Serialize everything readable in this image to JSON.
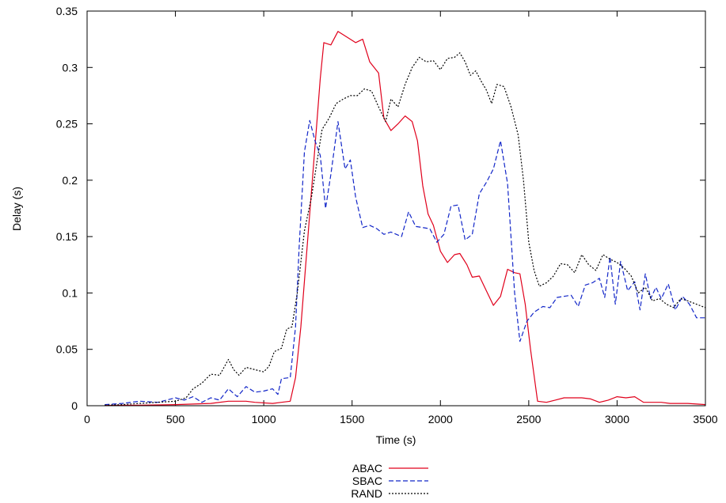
{
  "chart_data": {
    "type": "line",
    "title": "",
    "xlabel": "Time (s)",
    "ylabel": "Delay (s)",
    "xlim": [
      0,
      3500
    ],
    "ylim": [
      0,
      0.35
    ],
    "x_ticks": [
      0,
      500,
      1000,
      1500,
      2000,
      2500,
      3000,
      3500
    ],
    "x_tick_labels": [
      "0",
      "500",
      "1000",
      "1500",
      "2000",
      "2500",
      "3000",
      "3500"
    ],
    "y_ticks": [
      0,
      0.05,
      0.1,
      0.15,
      0.2,
      0.25,
      0.3,
      0.35
    ],
    "y_tick_labels": [
      "0",
      "0.05",
      "0.1",
      "0.15",
      "0.2",
      "0.25",
      "0.3",
      "0.35"
    ],
    "grid": false,
    "legend_position": "bottom-center",
    "series": [
      {
        "name": "ABAC",
        "color": "#e0001b",
        "dash": "solid",
        "points": [
          [
            100,
            0.0003
          ],
          [
            300,
            0.0005
          ],
          [
            500,
            0.001
          ],
          [
            700,
            0.002
          ],
          [
            800,
            0.004
          ],
          [
            900,
            0.004
          ],
          [
            950,
            0.003
          ],
          [
            1050,
            0.002
          ],
          [
            1100,
            0.003
          ],
          [
            1150,
            0.004
          ],
          [
            1180,
            0.025
          ],
          [
            1210,
            0.07
          ],
          [
            1240,
            0.13
          ],
          [
            1270,
            0.19
          ],
          [
            1300,
            0.25
          ],
          [
            1320,
            0.29
          ],
          [
            1340,
            0.322
          ],
          [
            1380,
            0.32
          ],
          [
            1420,
            0.332
          ],
          [
            1470,
            0.327
          ],
          [
            1520,
            0.322
          ],
          [
            1560,
            0.325
          ],
          [
            1600,
            0.305
          ],
          [
            1650,
            0.295
          ],
          [
            1680,
            0.255
          ],
          [
            1720,
            0.244
          ],
          [
            1760,
            0.25
          ],
          [
            1800,
            0.257
          ],
          [
            1840,
            0.252
          ],
          [
            1870,
            0.235
          ],
          [
            1900,
            0.195
          ],
          [
            1930,
            0.17
          ],
          [
            1960,
            0.16
          ],
          [
            2000,
            0.137
          ],
          [
            2040,
            0.127
          ],
          [
            2080,
            0.134
          ],
          [
            2110,
            0.135
          ],
          [
            2150,
            0.125
          ],
          [
            2180,
            0.114
          ],
          [
            2220,
            0.115
          ],
          [
            2260,
            0.102
          ],
          [
            2300,
            0.089
          ],
          [
            2340,
            0.097
          ],
          [
            2380,
            0.121
          ],
          [
            2420,
            0.118
          ],
          [
            2450,
            0.117
          ],
          [
            2480,
            0.09
          ],
          [
            2510,
            0.05
          ],
          [
            2550,
            0.004
          ],
          [
            2600,
            0.003
          ],
          [
            2650,
            0.005
          ],
          [
            2700,
            0.007
          ],
          [
            2800,
            0.007
          ],
          [
            2850,
            0.006
          ],
          [
            2900,
            0.003
          ],
          [
            2950,
            0.005
          ],
          [
            3000,
            0.008
          ],
          [
            3050,
            0.007
          ],
          [
            3100,
            0.008
          ],
          [
            3150,
            0.003
          ],
          [
            3250,
            0.003
          ],
          [
            3300,
            0.002
          ],
          [
            3400,
            0.002
          ],
          [
            3500,
            0.001
          ]
        ]
      },
      {
        "name": "SBAC",
        "color": "#1226c8",
        "dash": "dashed",
        "points": [
          [
            100,
            0.001
          ],
          [
            200,
            0.002
          ],
          [
            300,
            0.004
          ],
          [
            400,
            0.003
          ],
          [
            500,
            0.007
          ],
          [
            550,
            0.005
          ],
          [
            600,
            0.008
          ],
          [
            650,
            0.003
          ],
          [
            700,
            0.007
          ],
          [
            750,
            0.005
          ],
          [
            800,
            0.015
          ],
          [
            850,
            0.008
          ],
          [
            900,
            0.017
          ],
          [
            950,
            0.012
          ],
          [
            1000,
            0.013
          ],
          [
            1050,
            0.015
          ],
          [
            1080,
            0.01
          ],
          [
            1100,
            0.024
          ],
          [
            1150,
            0.025
          ],
          [
            1180,
            0.07
          ],
          [
            1200,
            0.14
          ],
          [
            1230,
            0.225
          ],
          [
            1260,
            0.253
          ],
          [
            1290,
            0.235
          ],
          [
            1320,
            0.222
          ],
          [
            1350,
            0.175
          ],
          [
            1380,
            0.205
          ],
          [
            1420,
            0.252
          ],
          [
            1460,
            0.21
          ],
          [
            1490,
            0.218
          ],
          [
            1520,
            0.185
          ],
          [
            1560,
            0.158
          ],
          [
            1600,
            0.16
          ],
          [
            1640,
            0.157
          ],
          [
            1680,
            0.152
          ],
          [
            1720,
            0.154
          ],
          [
            1780,
            0.15
          ],
          [
            1820,
            0.172
          ],
          [
            1860,
            0.159
          ],
          [
            1900,
            0.158
          ],
          [
            1940,
            0.157
          ],
          [
            1980,
            0.145
          ],
          [
            2020,
            0.152
          ],
          [
            2060,
            0.177
          ],
          [
            2100,
            0.178
          ],
          [
            2140,
            0.147
          ],
          [
            2180,
            0.152
          ],
          [
            2220,
            0.188
          ],
          [
            2260,
            0.198
          ],
          [
            2300,
            0.21
          ],
          [
            2340,
            0.235
          ],
          [
            2380,
            0.197
          ],
          [
            2420,
            0.1
          ],
          [
            2450,
            0.057
          ],
          [
            2490,
            0.075
          ],
          [
            2530,
            0.083
          ],
          [
            2580,
            0.088
          ],
          [
            2620,
            0.087
          ],
          [
            2660,
            0.096
          ],
          [
            2700,
            0.097
          ],
          [
            2740,
            0.098
          ],
          [
            2780,
            0.088
          ],
          [
            2820,
            0.107
          ],
          [
            2860,
            0.109
          ],
          [
            2900,
            0.113
          ],
          [
            2930,
            0.096
          ],
          [
            2960,
            0.132
          ],
          [
            2990,
            0.09
          ],
          [
            3020,
            0.128
          ],
          [
            3060,
            0.102
          ],
          [
            3100,
            0.11
          ],
          [
            3130,
            0.085
          ],
          [
            3160,
            0.117
          ],
          [
            3190,
            0.095
          ],
          [
            3220,
            0.105
          ],
          [
            3250,
            0.095
          ],
          [
            3290,
            0.108
          ],
          [
            3330,
            0.085
          ],
          [
            3370,
            0.097
          ],
          [
            3410,
            0.09
          ],
          [
            3450,
            0.078
          ],
          [
            3500,
            0.078
          ]
        ]
      },
      {
        "name": "RAND",
        "color": "#000000",
        "dash": "dotted",
        "points": [
          [
            100,
            0.0005
          ],
          [
            200,
            0.001
          ],
          [
            300,
            0.002
          ],
          [
            400,
            0.003
          ],
          [
            500,
            0.004
          ],
          [
            560,
            0.007
          ],
          [
            600,
            0.015
          ],
          [
            650,
            0.02
          ],
          [
            700,
            0.028
          ],
          [
            750,
            0.027
          ],
          [
            800,
            0.041
          ],
          [
            830,
            0.032
          ],
          [
            860,
            0.027
          ],
          [
            900,
            0.034
          ],
          [
            950,
            0.032
          ],
          [
            1000,
            0.03
          ],
          [
            1030,
            0.035
          ],
          [
            1060,
            0.048
          ],
          [
            1100,
            0.051
          ],
          [
            1130,
            0.068
          ],
          [
            1160,
            0.07
          ],
          [
            1190,
            0.1
          ],
          [
            1230,
            0.155
          ],
          [
            1270,
            0.185
          ],
          [
            1300,
            0.215
          ],
          [
            1330,
            0.245
          ],
          [
            1370,
            0.255
          ],
          [
            1410,
            0.268
          ],
          [
            1450,
            0.272
          ],
          [
            1490,
            0.275
          ],
          [
            1530,
            0.275
          ],
          [
            1570,
            0.281
          ],
          [
            1610,
            0.279
          ],
          [
            1650,
            0.265
          ],
          [
            1690,
            0.252
          ],
          [
            1720,
            0.272
          ],
          [
            1760,
            0.265
          ],
          [
            1800,
            0.285
          ],
          [
            1840,
            0.3
          ],
          [
            1880,
            0.309
          ],
          [
            1920,
            0.305
          ],
          [
            1960,
            0.306
          ],
          [
            2000,
            0.298
          ],
          [
            2040,
            0.308
          ],
          [
            2080,
            0.309
          ],
          [
            2110,
            0.313
          ],
          [
            2140,
            0.305
          ],
          [
            2170,
            0.293
          ],
          [
            2200,
            0.297
          ],
          [
            2230,
            0.288
          ],
          [
            2260,
            0.28
          ],
          [
            2290,
            0.268
          ],
          [
            2320,
            0.285
          ],
          [
            2360,
            0.283
          ],
          [
            2400,
            0.265
          ],
          [
            2440,
            0.24
          ],
          [
            2470,
            0.2
          ],
          [
            2500,
            0.145
          ],
          [
            2530,
            0.12
          ],
          [
            2560,
            0.106
          ],
          [
            2600,
            0.109
          ],
          [
            2640,
            0.115
          ],
          [
            2680,
            0.126
          ],
          [
            2720,
            0.125
          ],
          [
            2760,
            0.118
          ],
          [
            2800,
            0.134
          ],
          [
            2840,
            0.125
          ],
          [
            2880,
            0.12
          ],
          [
            2920,
            0.134
          ],
          [
            2960,
            0.13
          ],
          [
            3000,
            0.127
          ],
          [
            3040,
            0.122
          ],
          [
            3080,
            0.115
          ],
          [
            3120,
            0.1
          ],
          [
            3160,
            0.105
          ],
          [
            3200,
            0.093
          ],
          [
            3240,
            0.095
          ],
          [
            3280,
            0.09
          ],
          [
            3320,
            0.087
          ],
          [
            3360,
            0.095
          ],
          [
            3400,
            0.093
          ],
          [
            3450,
            0.09
          ],
          [
            3500,
            0.087
          ]
        ]
      }
    ]
  }
}
